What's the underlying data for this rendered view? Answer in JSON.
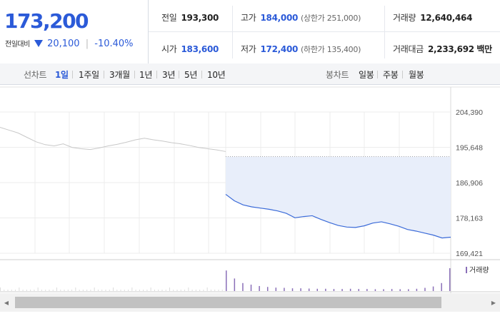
{
  "quote": {
    "price": "173,200",
    "change_label": "전일대비",
    "change_amount": "20,100",
    "change_rate": "-10.40%",
    "accent_color": "#2b5ad8"
  },
  "stats": {
    "prev_close_label": "전일",
    "prev_close": "193,300",
    "high_label": "고가",
    "high": "184,000",
    "upper_limit": "(상한가 251,000)",
    "volume_label": "거래량",
    "volume": "12,640,464",
    "open_label": "시가",
    "open": "183,600",
    "low_label": "저가",
    "low": "172,400",
    "lower_limit": "(하한가 135,400)",
    "amount_label": "거래대금",
    "amount": "2,233,692",
    "amount_unit": "백만"
  },
  "line_tabs": {
    "label": "선차트",
    "items": [
      "1일",
      "1주일",
      "3개월",
      "1년",
      "3년",
      "5년",
      "10년"
    ],
    "active": "1일"
  },
  "candle_tabs": {
    "label": "봉차트",
    "items": [
      "일봉",
      "주봉",
      "월봉"
    ]
  },
  "chart_data": {
    "type": "line",
    "y_ticks": [
      "204,390",
      "195,648",
      "186,906",
      "178,163",
      "169,421"
    ],
    "ylim": [
      169421,
      204390
    ],
    "prev_close_reference": 193300,
    "volume_legend": "거래량",
    "series": [
      {
        "values_prev_day": [
          200600,
          199900,
          199200,
          198100,
          197000,
          196300,
          196000,
          196500,
          195600,
          195300,
          195100,
          195500,
          196000,
          196400,
          196900,
          197500,
          197900,
          197500,
          197200,
          196800,
          196500,
          196100,
          195600,
          195300,
          195000,
          194600
        ],
        "values_today": [
          184000,
          182400,
          181400,
          180900,
          180600,
          180300,
          179900,
          179300,
          178200,
          178500,
          178700,
          177800,
          177000,
          176300,
          175900,
          175800,
          176200,
          176900,
          177200,
          176700,
          176100,
          175300,
          174900,
          174400,
          173900,
          173200,
          173400
        ]
      }
    ],
    "volume_today": [
      90,
      55,
      35,
      28,
      22,
      18,
      15,
      14,
      12,
      12,
      11,
      10,
      10,
      9,
      9,
      10,
      9,
      9,
      8,
      8,
      9,
      8,
      8,
      10,
      14,
      20,
      35,
      100
    ]
  }
}
